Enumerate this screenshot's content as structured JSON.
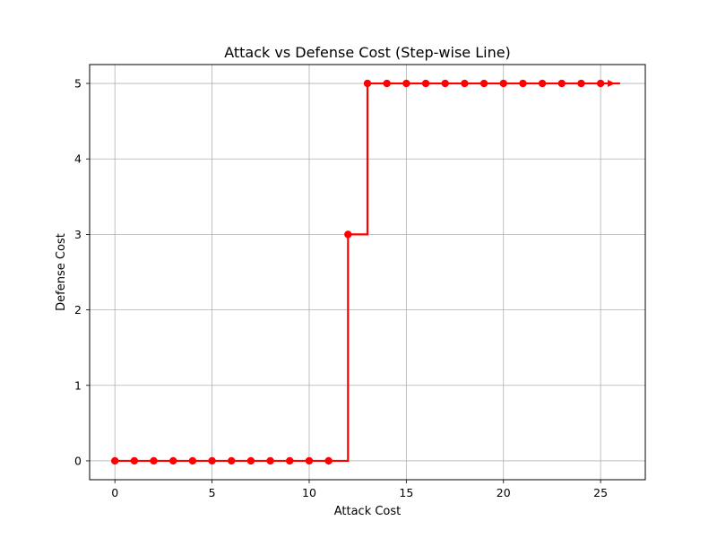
{
  "chart_data": {
    "type": "line",
    "title": "Attack vs Defense Cost (Step-wise Line)",
    "xlabel": "Attack Cost",
    "ylabel": "Defense Cost",
    "xlim": [
      -1.3,
      27.3
    ],
    "ylim": [
      -0.25,
      5.25
    ],
    "xticks": [
      0,
      5,
      10,
      15,
      20,
      25
    ],
    "yticks": [
      0,
      1,
      2,
      3,
      4,
      5
    ],
    "grid": true,
    "step_where": "post",
    "series": [
      {
        "color": "#ff0000",
        "marker": "circle",
        "x": [
          0,
          1,
          2,
          3,
          4,
          5,
          6,
          7,
          8,
          9,
          10,
          11,
          12,
          13,
          14,
          15,
          16,
          17,
          18,
          19,
          20,
          21,
          22,
          23,
          24,
          25
        ],
        "y": [
          0,
          0,
          0,
          0,
          0,
          0,
          0,
          0,
          0,
          0,
          0,
          0,
          3,
          5,
          5,
          5,
          5,
          5,
          5,
          5,
          5,
          5,
          5,
          5,
          5,
          5
        ],
        "line_end": {
          "x": 26,
          "y": 5,
          "marker": "arrow-right"
        }
      }
    ]
  }
}
